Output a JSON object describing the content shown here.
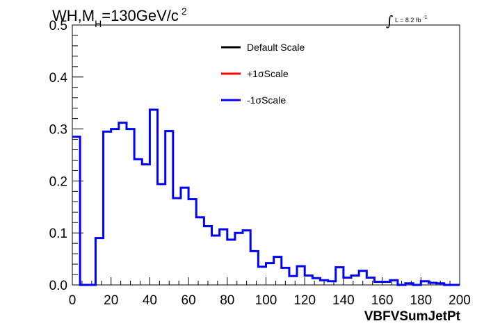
{
  "chart_data": {
    "type": "step",
    "title": {
      "main": "WH,M",
      "sub": "H",
      "rest": "=130GeV/c",
      "sup": "2"
    },
    "lumi": {
      "symbol": "∫",
      "text": "L = 8.2 fb",
      "sup": "-1"
    },
    "xlabel": "VBFVSumJetPt",
    "ylabel": "",
    "xlim": [
      0,
      200
    ],
    "ylim": [
      0,
      0.5
    ],
    "xticks": [
      0,
      20,
      40,
      60,
      80,
      100,
      120,
      140,
      160,
      180,
      200
    ],
    "xtick_labels": [
      "0",
      "20",
      "40",
      "60",
      "80",
      "100",
      "120",
      "140",
      "160",
      "180",
      "200"
    ],
    "yticks": [
      0.0,
      0.1,
      0.2,
      0.3,
      0.4,
      0.5
    ],
    "ytick_labels": [
      "0.0",
      "0.1",
      "0.2",
      "0.3",
      "0.4",
      "0.5"
    ],
    "bin_width": 4,
    "bin_edges_start": 0,
    "legend": {
      "placement": "top-center",
      "entries": [
        {
          "label": "Default Scale",
          "color": "#000000"
        },
        {
          "label": "+1σScale",
          "color": "#ff0000"
        },
        {
          "label": "-1σScale",
          "color": "#0000ff"
        }
      ]
    },
    "series": [
      {
        "name": "-1σScale",
        "color": "#0000ff",
        "values": [
          0.285,
          0.0,
          0.0,
          0.09,
          0.295,
          0.3,
          0.312,
          0.3,
          0.242,
          0.232,
          0.337,
          0.194,
          0.296,
          0.167,
          0.187,
          0.165,
          0.13,
          0.113,
          0.095,
          0.107,
          0.087,
          0.1,
          0.105,
          0.065,
          0.035,
          0.042,
          0.054,
          0.033,
          0.017,
          0.036,
          0.018,
          0.013,
          0.009,
          0.007,
          0.034,
          0.014,
          0.018,
          0.027,
          0.014,
          0.006,
          0.006,
          0.009,
          0.0,
          0.003,
          0.0,
          0.007,
          0.004,
          0.003,
          0.0,
          0.0
        ]
      }
    ]
  }
}
